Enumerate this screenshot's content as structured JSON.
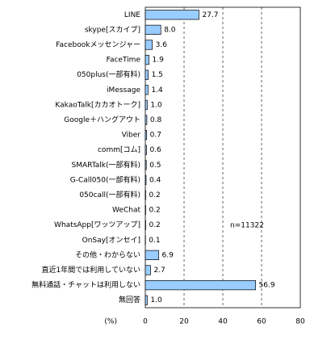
{
  "chart_data": {
    "type": "bar",
    "orientation": "horizontal",
    "categories": [
      "LINE",
      "skype[スカイプ]",
      "Facebookメッセンジャー",
      "FaceTime",
      "050plus(一部有料)",
      "iMessage",
      "KakaoTalk[カカオトーク]",
      "Google＋ハングアウト",
      "Viber",
      "comm[コム]",
      "SMARTalk(一部有料)",
      "G-Call050(一部有料)",
      "050call(一部有料)",
      "WeChat",
      "WhatsApp[ワッツアップ]",
      "OnSay[オンセイ]",
      "その他・わからない",
      "直近1年間では利用していない",
      "無料通話・チャットは利用しない",
      "無回答"
    ],
    "values": [
      27.7,
      8.0,
      3.6,
      1.9,
      1.5,
      1.4,
      1.0,
      0.8,
      0.7,
      0.6,
      0.5,
      0.4,
      0.2,
      0.2,
      0.2,
      0.1,
      6.9,
      2.7,
      56.9,
      1.0
    ],
    "value_labels": [
      "27.7",
      "8.0",
      "3.6",
      "1.9",
      "1.5",
      "1.4",
      "1.0",
      "0.8",
      "0.7",
      "0.6",
      "0.5",
      "0.4",
      "0.2",
      "0.2",
      "0.2",
      "0.1",
      "6.9",
      "2.7",
      "56.9",
      "1.0"
    ],
    "color": "#99ccff",
    "xlim": [
      0,
      80
    ],
    "xticks": [
      0,
      20,
      40,
      60,
      80
    ],
    "grid": true,
    "xlabel": "(%)",
    "annotation": "n=11322"
  }
}
